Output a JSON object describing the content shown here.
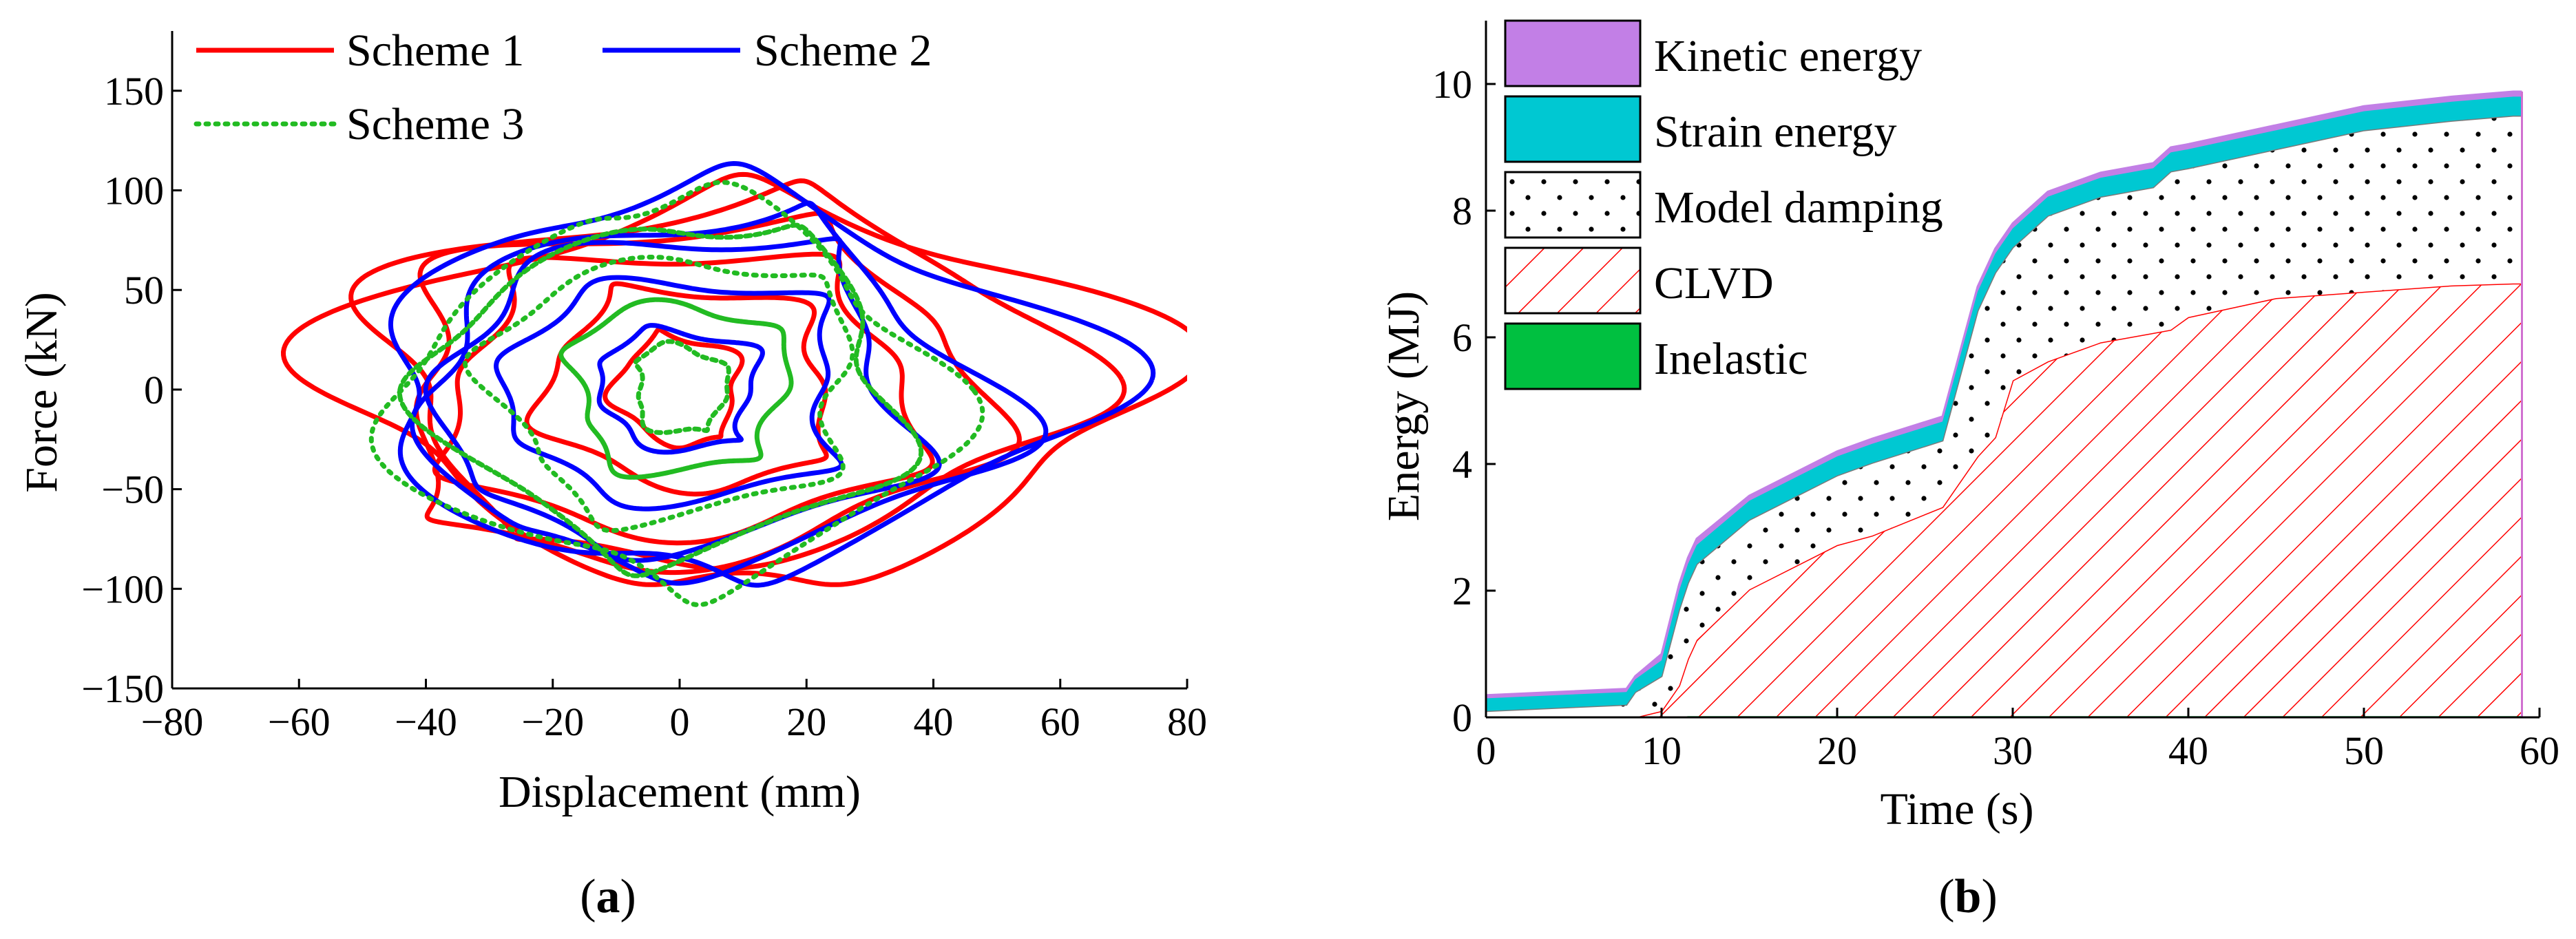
{
  "chart_data": [
    {
      "id": "a",
      "type": "line",
      "subplot_label": "(a)",
      "subplot_letter": "a",
      "xlabel": "Displacement (mm)",
      "ylabel": "Force (kN)",
      "xlim": [
        -80,
        80
      ],
      "ylim": [
        -150,
        180
      ],
      "xticks": [
        -80,
        -60,
        -40,
        -20,
        0,
        20,
        40,
        60,
        80
      ],
      "yticks": [
        -150,
        -100,
        -50,
        0,
        50,
        100,
        150
      ],
      "xtick_labels": [
        "−80",
        "−60",
        "−40",
        "−20",
        "0",
        "20",
        "40",
        "60",
        "80"
      ],
      "ytick_labels": [
        "−150",
        "−100",
        "−50",
        "0",
        "50",
        "100",
        "150"
      ],
      "grid": false,
      "legend_position": "top",
      "series": [
        {
          "name": "Scheme 1",
          "color": "#ff0000",
          "dash": "solid",
          "loops": [
            {
              "cx": 10,
              "cy": -2,
              "rx": 66,
              "ry": 100,
              "turns": 1
            },
            {
              "cx": 5,
              "cy": 5,
              "rx": 56,
              "ry": 92,
              "turns": 1
            },
            {
              "cx": 0,
              "cy": 0,
              "rx": 45,
              "ry": 85,
              "turns": 2
            },
            {
              "cx": 0,
              "cy": 0,
              "rx": 35,
              "ry": 70,
              "turns": 2
            },
            {
              "cx": 2,
              "cy": 2,
              "rx": 22,
              "ry": 50,
              "turns": 2
            },
            {
              "cx": 0,
              "cy": 0,
              "rx": 10,
              "ry": 28,
              "turns": 3
            }
          ]
        },
        {
          "name": "Scheme 2",
          "color": "#0000ff",
          "dash": "solid",
          "loops": [
            {
              "cx": 5,
              "cy": 5,
              "rx": 58,
              "ry": 100,
              "turns": 1
            },
            {
              "cx": 3,
              "cy": 0,
              "rx": 46,
              "ry": 90,
              "turns": 2
            },
            {
              "cx": 0,
              "cy": 0,
              "rx": 36,
              "ry": 78,
              "turns": 2
            },
            {
              "cx": 0,
              "cy": 0,
              "rx": 25,
              "ry": 55,
              "turns": 2
            },
            {
              "cx": 0,
              "cy": 0,
              "rx": 12,
              "ry": 30,
              "turns": 3
            }
          ]
        },
        {
          "name": "Scheme 3",
          "color": "#22bb22",
          "dash": "dotted",
          "loops": [
            {
              "cx": 0,
              "cy": 0,
              "rx": 45,
              "ry": 100,
              "turns": 1
            },
            {
              "cx": 0,
              "cy": 0,
              "rx": 38,
              "ry": 85,
              "turns": 2
            },
            {
              "cx": 0,
              "cy": 0,
              "rx": 28,
              "ry": 65,
              "turns": 2
            },
            {
              "cx": 0,
              "cy": 0,
              "rx": 16,
              "ry": 42,
              "turns": 3
            },
            {
              "cx": 0,
              "cy": 0,
              "rx": 7,
              "ry": 22,
              "turns": 4
            }
          ]
        }
      ]
    },
    {
      "id": "b",
      "type": "area",
      "subplot_label": "(b)",
      "subplot_letter": "b",
      "xlabel": "Time (s)",
      "ylabel": "Energy (MJ)",
      "xlim": [
        0,
        60
      ],
      "ylim": [
        0,
        11
      ],
      "xticks": [
        0,
        10,
        20,
        30,
        40,
        50,
        60
      ],
      "yticks": [
        0,
        2,
        4,
        6,
        8,
        10
      ],
      "xtick_labels": [
        "0",
        "10",
        "20",
        "30",
        "40",
        "50",
        "60"
      ],
      "ytick_labels": [
        "0",
        "2",
        "4",
        "6",
        "8",
        "10"
      ],
      "grid": false,
      "stacked": true,
      "legend_position": "top-left",
      "x": [
        0,
        8,
        8.5,
        10,
        11,
        11.5,
        12,
        15,
        20,
        22,
        26,
        28,
        29,
        30,
        32,
        35,
        38,
        39,
        40,
        45,
        50,
        55,
        58.5,
        59
      ],
      "series": [
        {
          "name": "Inelastic",
          "color": "#00c040",
          "pattern": "solid",
          "values": [
            0,
            0,
            0,
            0,
            0,
            0.02,
            0.02,
            0.02,
            0.02,
            0.02,
            0.02,
            0.02,
            0.02,
            0.02,
            0.02,
            0.02,
            0.02,
            0.02,
            0.02,
            0.02,
            0.02,
            0.02,
            0.02,
            0.02
          ]
        },
        {
          "name": "CLVD",
          "color": "#ff0000",
          "pattern": "hatch",
          "values": [
            0,
            0,
            0,
            0.1,
            0.5,
            0.9,
            1.2,
            2.0,
            2.7,
            2.85,
            3.3,
            4.1,
            4.4,
            5.3,
            5.6,
            5.9,
            6.05,
            6.1,
            6.3,
            6.6,
            6.7,
            6.8,
            6.83,
            6.83
          ]
        },
        {
          "name": "Model damping",
          "color": "#000000",
          "pattern": "dots",
          "values": [
            0.1,
            0.2,
            0.4,
            0.55,
            1.2,
            1.2,
            1.2,
            1.1,
            1.1,
            1.15,
            1.05,
            2.3,
            2.6,
            2.1,
            2.3,
            2.3,
            2.3,
            2.5,
            2.35,
            2.35,
            2.55,
            2.6,
            2.65,
            2.65
          ]
        },
        {
          "name": "Strain energy",
          "color": "#00c8d2",
          "pattern": "solid",
          "values": [
            0.2,
            0.2,
            0.2,
            0.25,
            0.3,
            0.3,
            0.3,
            0.3,
            0.3,
            0.3,
            0.3,
            0.3,
            0.3,
            0.3,
            0.3,
            0.3,
            0.3,
            0.3,
            0.3,
            0.3,
            0.3,
            0.3,
            0.3,
            0.3
          ]
        },
        {
          "name": "Kinetic energy",
          "color": "#c27fe6",
          "pattern": "solid",
          "values": [
            0.05,
            0.05,
            0.05,
            0.1,
            0.1,
            0.1,
            0.1,
            0.08,
            0.08,
            0.08,
            0.08,
            0.08,
            0.08,
            0.08,
            0.08,
            0.08,
            0.08,
            0.08,
            0.08,
            0.08,
            0.08,
            0.08,
            0.08,
            0.08
          ]
        }
      ]
    }
  ]
}
